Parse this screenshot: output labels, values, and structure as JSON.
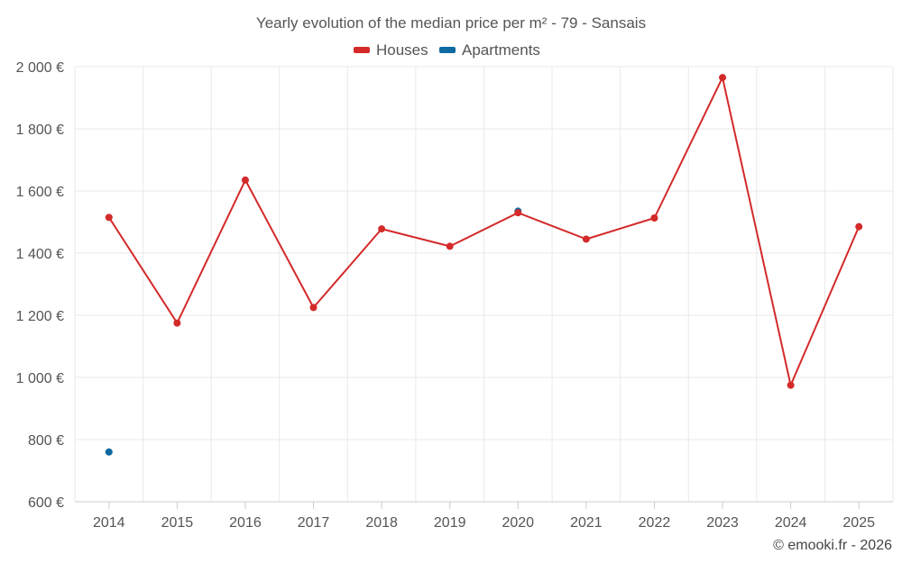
{
  "chart_data": {
    "type": "line",
    "title": "Yearly evolution of the median price per m² - 79 - Sansais",
    "categories": [
      "2014",
      "2015",
      "2016",
      "2017",
      "2018",
      "2019",
      "2020",
      "2021",
      "2022",
      "2023",
      "2024",
      "2025"
    ],
    "y_ticks": [
      600,
      800,
      1000,
      1200,
      1400,
      1600,
      1800,
      2000
    ],
    "y_tick_labels": [
      "600 €",
      "800 €",
      "1 000 €",
      "1 200 €",
      "1 400 €",
      "1 600 €",
      "1 800 €",
      "2 000 €"
    ],
    "ylim": [
      600,
      2000
    ],
    "grid": true,
    "legend_position": "top-center",
    "series": [
      {
        "name": "Houses",
        "color": "#d42a2a",
        "values": [
          1515,
          1175,
          1635,
          1225,
          1478,
          1422,
          1530,
          1445,
          1513,
          1965,
          975,
          1485
        ]
      },
      {
        "name": "Apartments",
        "color": "#0e6aa0",
        "values": [
          760,
          null,
          null,
          null,
          null,
          null,
          1535,
          null,
          null,
          null,
          null,
          null
        ]
      }
    ]
  },
  "credit": "© emooki.fr - 2026"
}
